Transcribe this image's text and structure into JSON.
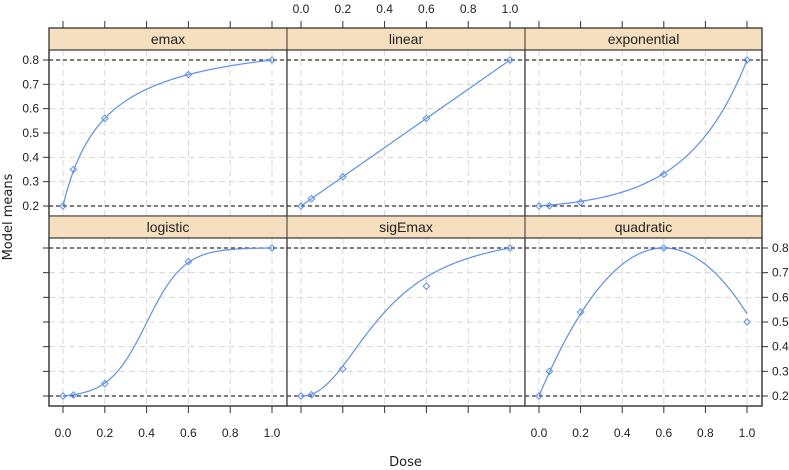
{
  "chart_data": {
    "type": "line",
    "layout": "trellis 3x2 (lattice xyplot)",
    "xlabel": "Dose",
    "ylabel": "Model means",
    "xlim": [
      0,
      1
    ],
    "ylim": [
      0.2,
      0.8
    ],
    "x_ticks": [
      "0.0",
      "0.2",
      "0.4",
      "0.6",
      "0.8",
      "1.0"
    ],
    "y_ticks": [
      "0.2",
      "0.3",
      "0.4",
      "0.5",
      "0.6",
      "0.7",
      "0.8"
    ],
    "grid": true,
    "reference_lines": [
      0.2,
      0.8
    ],
    "dose_points": [
      0,
      0.05,
      0.2,
      0.6,
      1.0
    ],
    "panels": [
      {
        "name": "emax",
        "row": 0,
        "col": 0,
        "x": [
          0,
          0.05,
          0.2,
          0.6,
          1.0
        ],
        "values": [
          0.2,
          0.35,
          0.56,
          0.74,
          0.8
        ]
      },
      {
        "name": "linear",
        "row": 0,
        "col": 1,
        "x": [
          0,
          0.05,
          0.2,
          0.6,
          1.0
        ],
        "values": [
          0.2,
          0.23,
          0.32,
          0.56,
          0.8
        ]
      },
      {
        "name": "exponential",
        "row": 0,
        "col": 2,
        "x": [
          0,
          0.05,
          0.2,
          0.6,
          1.0
        ],
        "values": [
          0.2,
          0.201,
          0.215,
          0.33,
          0.8
        ]
      },
      {
        "name": "logistic",
        "row": 1,
        "col": 0,
        "x": [
          0,
          0.05,
          0.2,
          0.6,
          1.0
        ],
        "values": [
          0.2,
          0.204,
          0.25,
          0.745,
          0.8
        ]
      },
      {
        "name": "sigEmax",
        "row": 1,
        "col": 1,
        "x": [
          0,
          0.05,
          0.2,
          0.6,
          1.0
        ],
        "values": [
          0.2,
          0.205,
          0.31,
          0.645,
          0.8
        ]
      },
      {
        "name": "quadratic",
        "row": 1,
        "col": 2,
        "x": [
          0,
          0.05,
          0.2,
          0.6,
          1.0
        ],
        "values": [
          0.2,
          0.3,
          0.54,
          0.8,
          0.5
        ]
      }
    ],
    "colors": {
      "line": "#5b8ff0",
      "strip": "#f5dfbf",
      "reference": "#333333",
      "grid": "#d8d8d8"
    }
  }
}
